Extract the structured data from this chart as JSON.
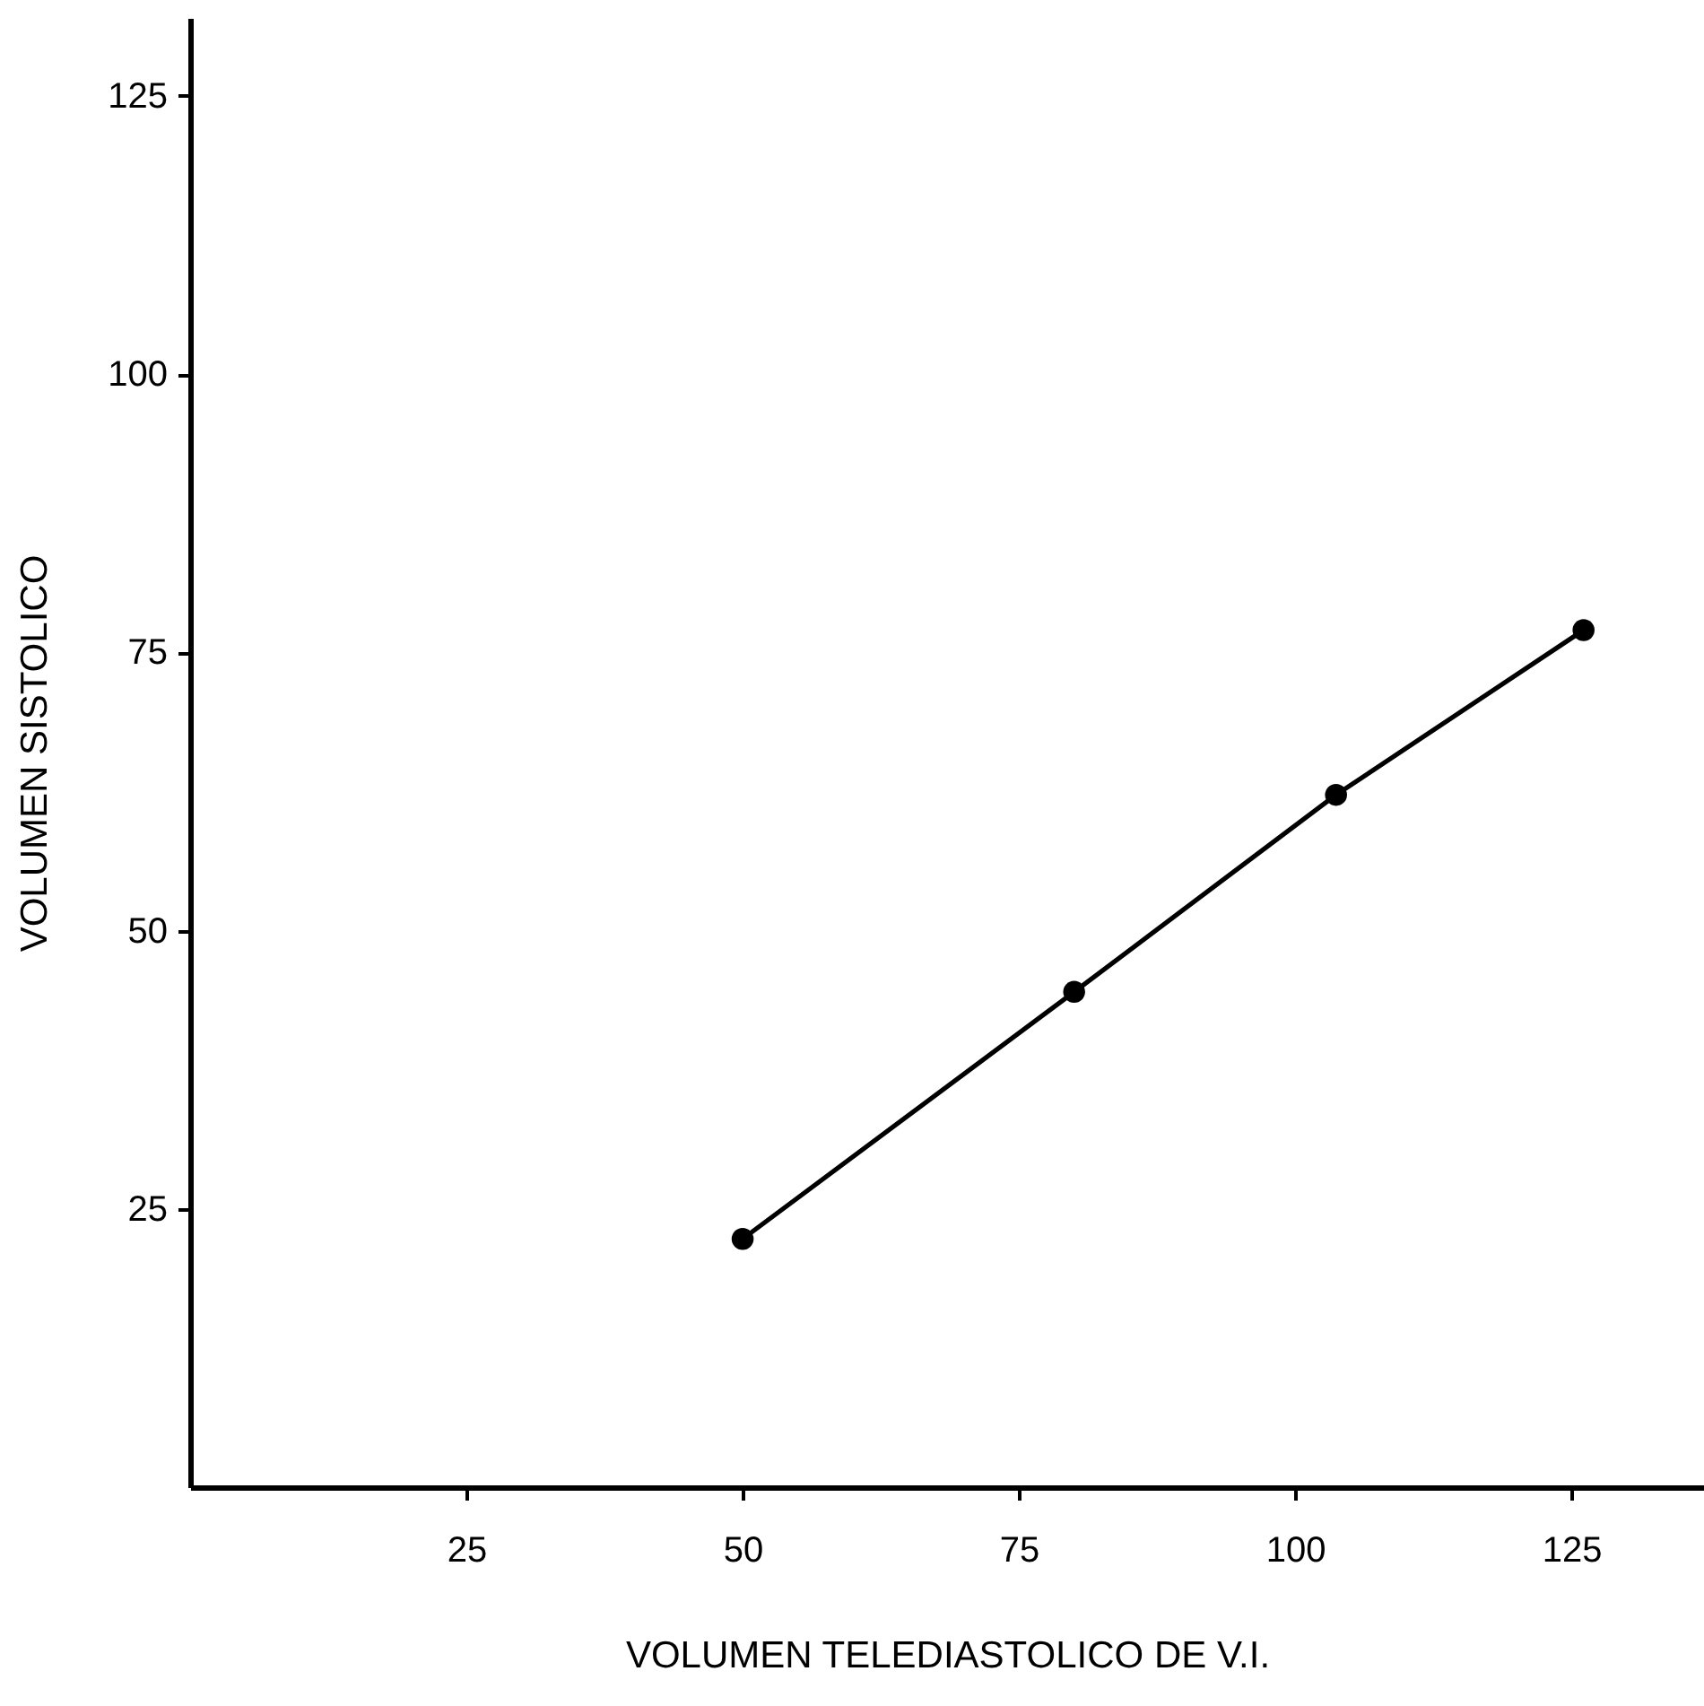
{
  "chart_data": {
    "type": "line",
    "xlabel": "VOLUMEN TELEDIASTOLICO DE V.I.",
    "ylabel": "VOLUMEN SISTOLICO",
    "x": [
      50,
      80,
      103.7,
      126.1
    ],
    "series": [
      {
        "color": "#000000",
        "values": [
          22.3,
          44.5,
          62.2,
          77
        ]
      }
    ],
    "xlim": [
      0,
      137
    ],
    "ylim": [
      0,
      132
    ],
    "xticks": [
      25,
      50,
      75,
      100,
      125
    ],
    "yticks": [
      25,
      50,
      75,
      100,
      125
    ],
    "grid": false,
    "marker": "circle",
    "line_style": "solid"
  }
}
